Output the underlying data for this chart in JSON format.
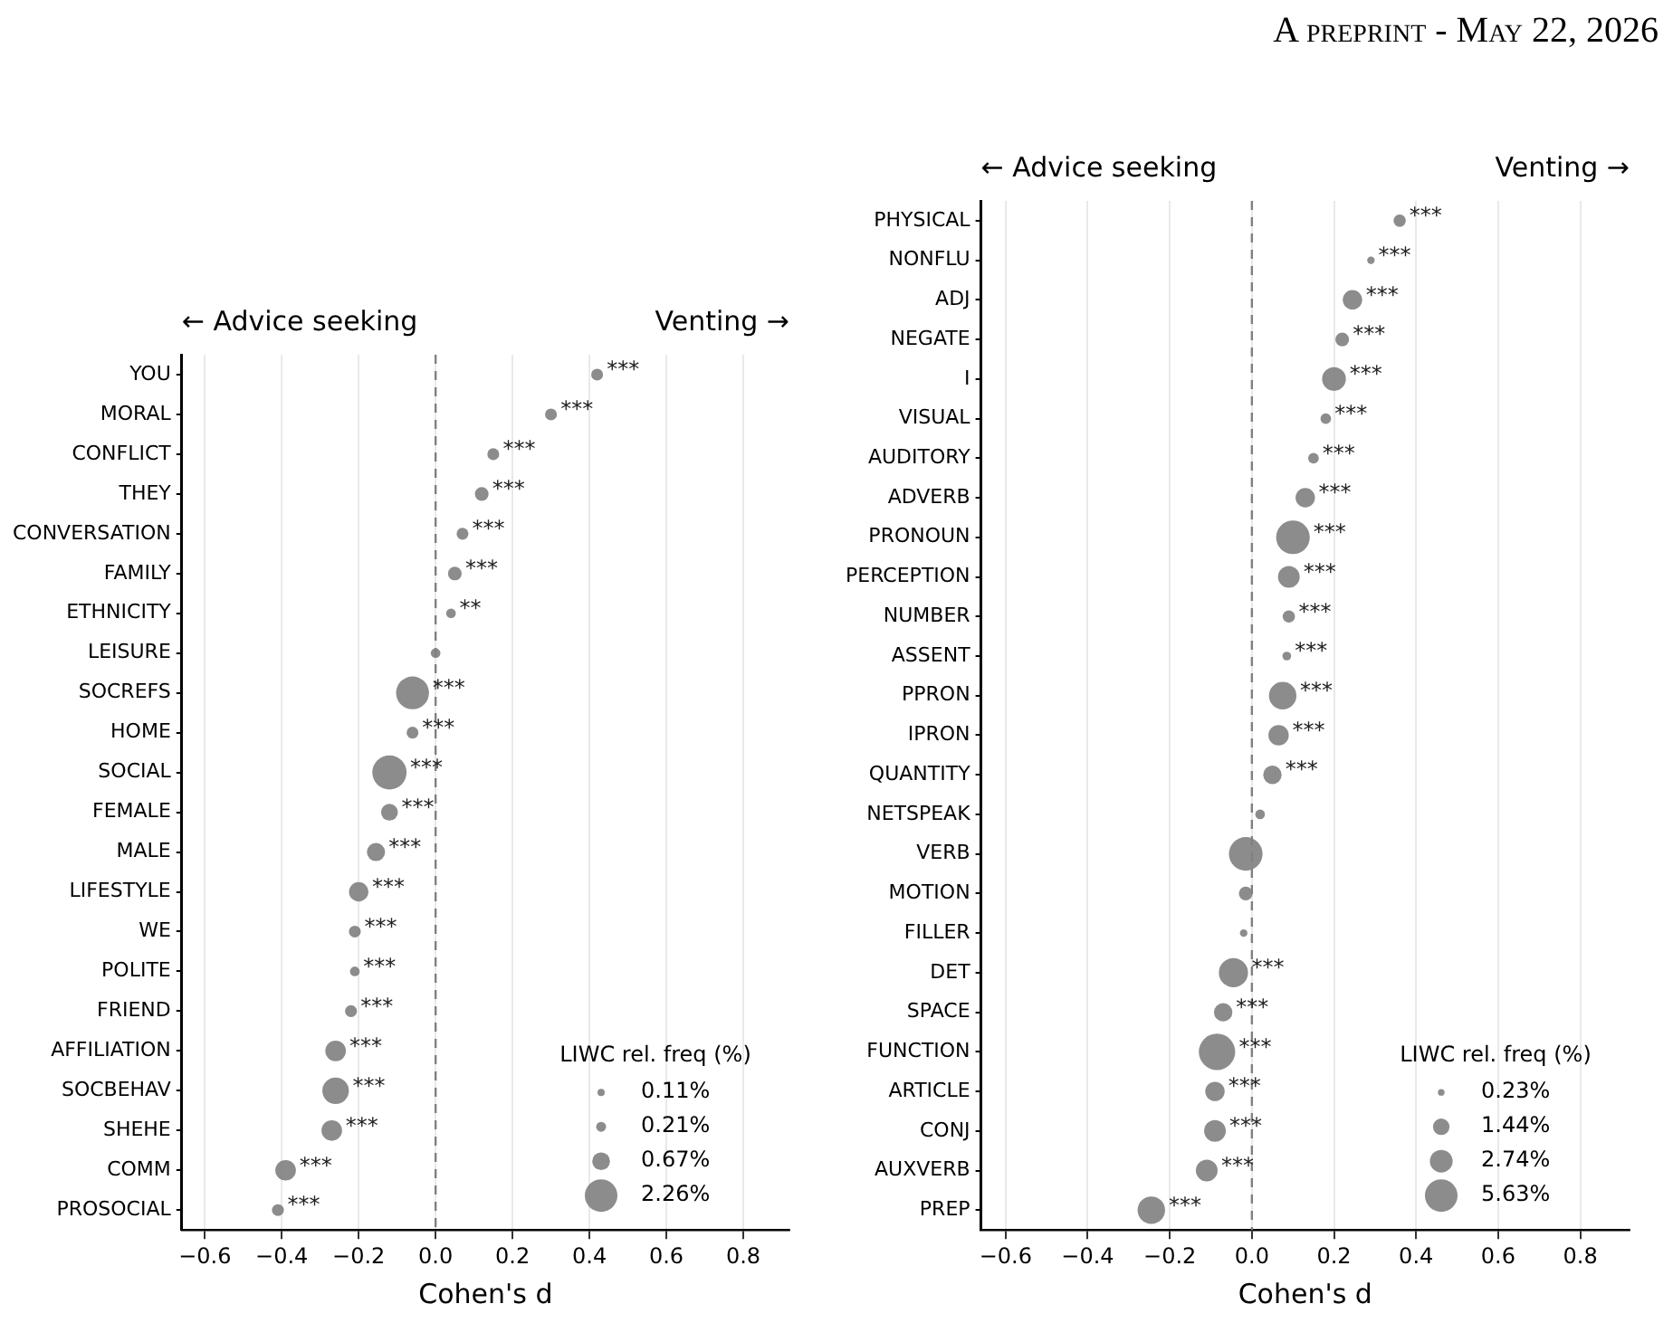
{
  "chart_data": [
    {
      "type": "bubble",
      "orientation": "horizontal",
      "xlabel": "Cohen's d",
      "legend_title": "LIWC rel. freq (%)",
      "annotations": [
        "← Advice seeking",
        "Venting →",
        "A preprint - May 22, 2026"
      ],
      "categories": [
        "YOU",
        "MORAL",
        "CONFLICT",
        "THEY",
        "CONVERSATION",
        "FAMILY",
        "ETHNICITY",
        "LEISURE",
        "SOCREFS",
        "HOME",
        "SOCIAL",
        "FEMALE",
        "MALE",
        "LIFESTYLE",
        "WE",
        "POLITE",
        "FRIEND",
        "AFFILIATION",
        "SOCBEHAV",
        "SHEHE",
        "COMM",
        "PROSOCIAL"
      ],
      "series": [
        {
          "color": "#808080",
          "values": [
            0.42,
            0.3,
            0.15,
            0.12,
            0.07,
            0.05,
            0.04,
            0.0,
            -0.06,
            -0.06,
            -0.12,
            -0.12,
            -0.155,
            -0.2,
            -0.21,
            -0.21,
            -0.22,
            -0.26,
            -0.26,
            -0.27,
            -0.39,
            -0.41
          ],
          "sizes": [
            0.3,
            0.3,
            0.3,
            0.4,
            0.3,
            0.4,
            0.2,
            0.2,
            2.3,
            0.3,
            2.5,
            0.6,
            0.7,
            0.8,
            0.3,
            0.2,
            0.3,
            0.9,
            1.5,
            0.9,
            0.9,
            0.3
          ],
          "value_labels": [
            "***",
            "***",
            "***",
            "***",
            "***",
            "***",
            "**",
            null,
            "***",
            "***",
            "***",
            "***",
            "***",
            "***",
            "***",
            "***",
            "***",
            "***",
            "***",
            "***",
            "***",
            "***"
          ]
        }
      ],
      "size_legend": [
        {
          "value": 0.11,
          "label": "0.11%"
        },
        {
          "value": 0.21,
          "label": "0.21%"
        },
        {
          "value": 0.67,
          "label": "0.67%"
        },
        {
          "value": 2.26,
          "label": "2.26%"
        }
      ],
      "xlim": [
        -0.66,
        0.92
      ],
      "xticks": [
        {
          "value": -0.6,
          "label": "−0.6"
        },
        {
          "value": -0.4,
          "label": "−0.4"
        },
        {
          "value": -0.2,
          "label": "−0.2"
        },
        {
          "value": 0,
          "label": "0.0"
        },
        {
          "value": 0.2,
          "label": "0.2"
        },
        {
          "value": 0.4,
          "label": "0.4"
        },
        {
          "value": 0.6,
          "label": "0.6"
        },
        {
          "value": 0.8,
          "label": "0.8"
        }
      ],
      "grid": "x",
      "ref_lines": [
        {
          "axis": "x",
          "value": 0,
          "color": "#808080",
          "line_style": "dashed"
        }
      ]
    },
    {
      "type": "bubble",
      "orientation": "horizontal",
      "xlabel": "Cohen's d",
      "legend_title": "LIWC rel. freq (%)",
      "annotations": [
        "← Advice seeking",
        "Venting →"
      ],
      "categories": [
        "PHYSICAL",
        "NONFLU",
        "ADJ",
        "NEGATE",
        "I",
        "VISUAL",
        "AUDITORY",
        "ADVERB",
        "PRONOUN",
        "PERCEPTION",
        "NUMBER",
        "ASSENT",
        "PPRON",
        "IPRON",
        "QUANTITY",
        "NETSPEAK",
        "VERB",
        "MOTION",
        "FILLER",
        "DET",
        "SPACE",
        "FUNCTION",
        "ARTICLE",
        "CONJ",
        "AUXVERB",
        "PREP"
      ],
      "series": [
        {
          "color": "#808080",
          "values": [
            0.36,
            0.29,
            0.245,
            0.22,
            0.2,
            0.18,
            0.15,
            0.13,
            0.1,
            0.09,
            0.09,
            0.085,
            0.075,
            0.065,
            0.05,
            0.02,
            -0.015,
            -0.015,
            -0.02,
            -0.045,
            -0.07,
            -0.085,
            -0.09,
            -0.09,
            -0.11,
            -0.245
          ],
          "sizes": [
            0.8,
            0.3,
            2.0,
            1.0,
            3.0,
            0.6,
            0.6,
            2.0,
            6.0,
            2.5,
            0.8,
            0.4,
            4.0,
            2.2,
            1.8,
            0.5,
            6.0,
            1.0,
            0.3,
            4.5,
            1.8,
            7.0,
            2.0,
            2.5,
            2.5,
            4.0
          ],
          "value_labels": [
            "***",
            "***",
            "***",
            "***",
            "***",
            "***",
            "***",
            "***",
            "***",
            "***",
            "***",
            "***",
            "***",
            "***",
            "***",
            null,
            null,
            null,
            null,
            "***",
            "***",
            "***",
            "***",
            "***",
            "***",
            "***"
          ]
        }
      ],
      "size_legend": [
        {
          "value": 0.23,
          "label": "0.23%"
        },
        {
          "value": 1.44,
          "label": "1.44%"
        },
        {
          "value": 2.74,
          "label": "2.74%"
        },
        {
          "value": 5.63,
          "label": "5.63%"
        }
      ],
      "xlim": [
        -0.66,
        0.92
      ],
      "xticks": [
        {
          "value": -0.6,
          "label": "−0.6"
        },
        {
          "value": -0.4,
          "label": "−0.4"
        },
        {
          "value": -0.2,
          "label": "−0.2"
        },
        {
          "value": 0,
          "label": "0.0"
        },
        {
          "value": 0.2,
          "label": "0.2"
        },
        {
          "value": 0.4,
          "label": "0.4"
        },
        {
          "value": 0.6,
          "label": "0.6"
        },
        {
          "value": 0.8,
          "label": "0.8"
        }
      ],
      "grid": "x",
      "ref_lines": [
        {
          "axis": "x",
          "value": 0,
          "color": "#808080",
          "line_style": "dashed"
        }
      ]
    }
  ]
}
